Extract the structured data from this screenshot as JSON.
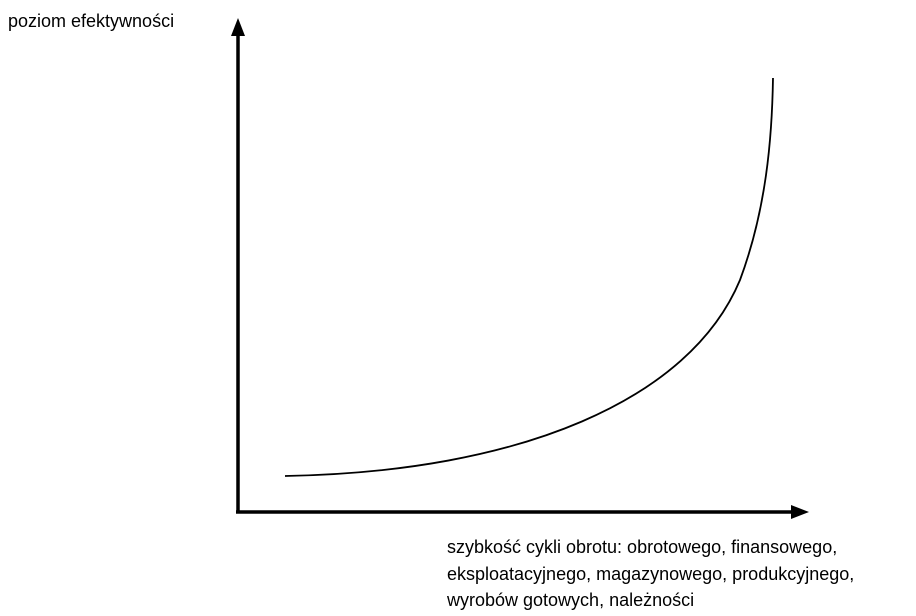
{
  "y_axis": {
    "label": "poziom efektywności"
  },
  "x_axis": {
    "label_lines": [
      "szybkość cykli obrotu: obrotowego, finansowego,",
      "eksploatacyjnego, magazynowego, produkcyjnego,",
      "wyrobów gotowych, należności"
    ]
  }
}
